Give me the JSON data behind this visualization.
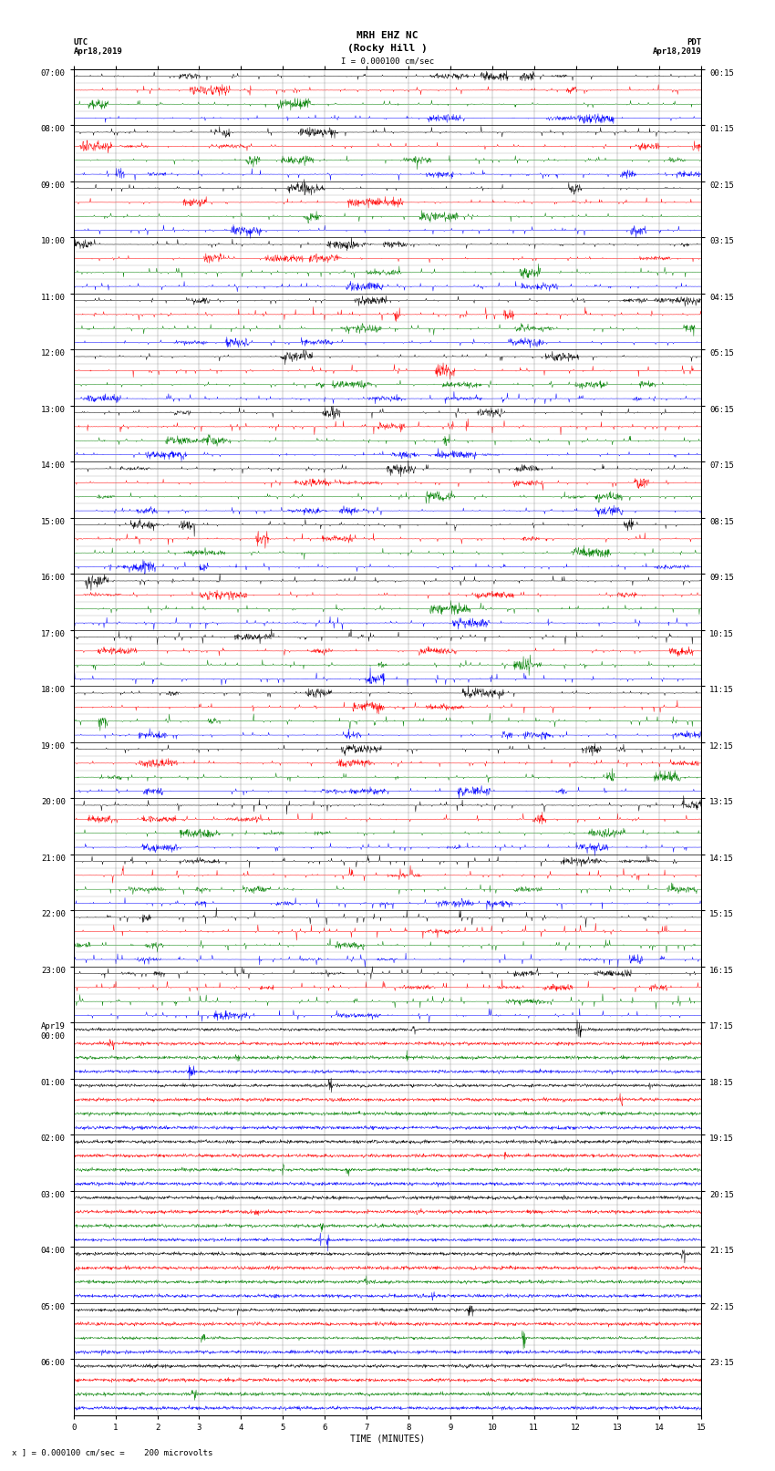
{
  "title_line1": "MRH EHZ NC",
  "title_line2": "(Rocky Hill )",
  "scale_label": "I = 0.000100 cm/sec",
  "utc_label": "UTC\nApr18,2019",
  "pdt_label": "PDT\nApr18,2019",
  "xlabel": "TIME (MINUTES)",
  "bottom_label": "x ] = 0.000100 cm/sec =    200 microvolts",
  "left_times": [
    "07:00",
    "08:00",
    "09:00",
    "10:00",
    "11:00",
    "12:00",
    "13:00",
    "14:00",
    "15:00",
    "16:00",
    "17:00",
    "18:00",
    "19:00",
    "20:00",
    "21:00",
    "22:00",
    "23:00",
    "Apr19\n00:00",
    "01:00",
    "02:00",
    "03:00",
    "04:00",
    "05:00",
    "06:00"
  ],
  "right_times": [
    "00:15",
    "01:15",
    "02:15",
    "03:15",
    "04:15",
    "05:15",
    "06:15",
    "07:15",
    "08:15",
    "09:15",
    "10:15",
    "11:15",
    "12:15",
    "13:15",
    "14:15",
    "15:15",
    "16:15",
    "17:15",
    "18:15",
    "19:15",
    "20:15",
    "21:15",
    "22:15",
    "23:15"
  ],
  "n_rows": 24,
  "n_channels": 4,
  "n_minutes": 15,
  "fig_width": 8.5,
  "fig_height": 16.13,
  "background_color": "#ffffff",
  "line_colors": [
    "#000000",
    "#ff0000",
    "#008000",
    "#0000ff"
  ],
  "title_fontsize": 8,
  "label_fontsize": 7,
  "tick_fontsize": 6.5,
  "noise_seed": 42
}
